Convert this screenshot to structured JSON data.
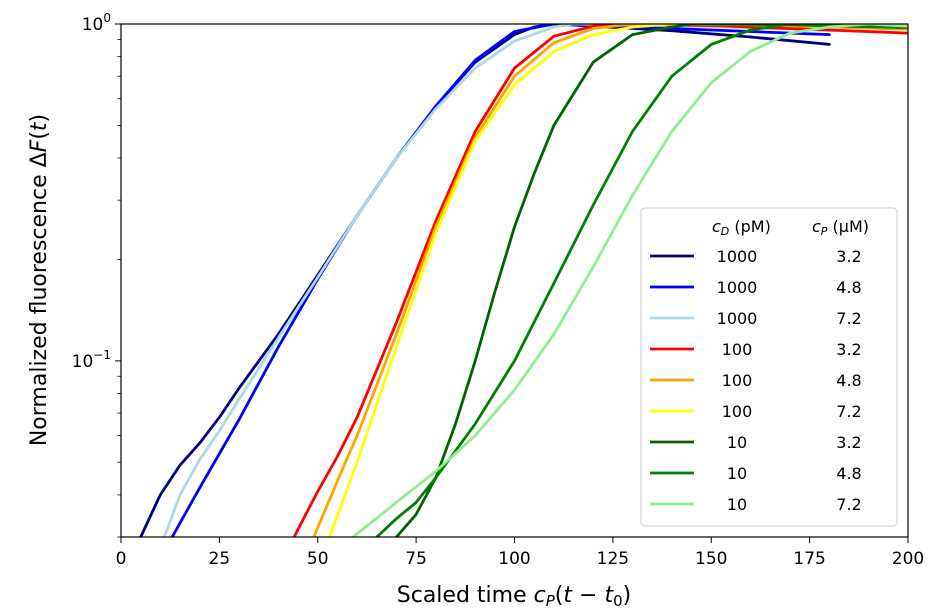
{
  "chart_data": {
    "type": "line",
    "xlabel": "Scaled time c_P(t − t_0)",
    "ylabel": "Normalized fluorescence ΔF(t)",
    "xlim": [
      0,
      200
    ],
    "ylim": [
      0.03,
      1.0
    ],
    "yscale": "log",
    "xticks": [
      "0",
      "25",
      "50",
      "75",
      "100",
      "125",
      "150",
      "175",
      "200"
    ],
    "yticks": [
      {
        "value": 1.0,
        "base": "10",
        "exp": "0"
      },
      {
        "value": 0.1,
        "base": "10",
        "exp": "−1"
      }
    ],
    "grid": false,
    "legend": {
      "placement": "lower-right",
      "header_cd": "c_D (pM)",
      "header_cp": "c_P (μM)"
    },
    "series": [
      {
        "cd": "1000",
        "cp": "3.2",
        "color": "#000080",
        "points": [
          [
            5,
            0.03
          ],
          [
            10,
            0.04
          ],
          [
            15,
            0.049
          ],
          [
            20,
            0.057
          ],
          [
            25,
            0.068
          ],
          [
            30,
            0.083
          ],
          [
            40,
            0.12
          ],
          [
            50,
            0.18
          ],
          [
            60,
            0.27
          ],
          [
            70,
            0.4
          ],
          [
            80,
            0.57
          ],
          [
            90,
            0.77
          ],
          [
            100,
            0.93
          ],
          [
            105,
            0.98
          ],
          [
            110,
            1.0
          ],
          [
            120,
            0.985
          ],
          [
            140,
            0.955
          ],
          [
            160,
            0.915
          ],
          [
            180,
            0.87
          ]
        ]
      },
      {
        "cd": "1000",
        "cp": "4.8",
        "color": "#0000ff",
        "points": [
          [
            13,
            0.03
          ],
          [
            20,
            0.042
          ],
          [
            30,
            0.067
          ],
          [
            40,
            0.11
          ],
          [
            50,
            0.175
          ],
          [
            60,
            0.27
          ],
          [
            70,
            0.4
          ],
          [
            80,
            0.57
          ],
          [
            90,
            0.78
          ],
          [
            100,
            0.95
          ],
          [
            110,
            1.0
          ],
          [
            130,
            0.98
          ],
          [
            150,
            0.96
          ],
          [
            180,
            0.93
          ]
        ]
      },
      {
        "cd": "1000",
        "cp": "7.2",
        "color": "#add8e6",
        "points": [
          [
            11,
            0.03
          ],
          [
            15,
            0.04
          ],
          [
            20,
            0.051
          ],
          [
            25,
            0.062
          ],
          [
            30,
            0.077
          ],
          [
            40,
            0.117
          ],
          [
            50,
            0.177
          ],
          [
            60,
            0.27
          ],
          [
            70,
            0.4
          ],
          [
            80,
            0.56
          ],
          [
            90,
            0.74
          ],
          [
            100,
            0.89
          ],
          [
            110,
            0.98
          ],
          [
            115,
            1.0
          ],
          [
            140,
            0.99
          ],
          [
            170,
            0.965
          ],
          [
            200,
            0.94
          ]
        ]
      },
      {
        "cd": "100",
        "cp": "3.2",
        "color": "#ff0000",
        "points": [
          [
            44,
            0.03
          ],
          [
            50,
            0.041
          ],
          [
            55,
            0.052
          ],
          [
            60,
            0.068
          ],
          [
            70,
            0.13
          ],
          [
            80,
            0.26
          ],
          [
            90,
            0.48
          ],
          [
            100,
            0.74
          ],
          [
            110,
            0.92
          ],
          [
            120,
            0.985
          ],
          [
            125,
            1.0
          ],
          [
            150,
            0.99
          ],
          [
            180,
            0.96
          ],
          [
            200,
            0.94
          ]
        ]
      },
      {
        "cd": "100",
        "cp": "4.8",
        "color": "#ffa500",
        "points": [
          [
            49,
            0.03
          ],
          [
            55,
            0.044
          ],
          [
            60,
            0.06
          ],
          [
            70,
            0.12
          ],
          [
            80,
            0.25
          ],
          [
            90,
            0.46
          ],
          [
            100,
            0.7
          ],
          [
            110,
            0.88
          ],
          [
            120,
            0.97
          ],
          [
            130,
            1.0
          ],
          [
            160,
            0.995
          ],
          [
            200,
            0.965
          ]
        ]
      },
      {
        "cd": "100",
        "cp": "7.2",
        "color": "#ffff00",
        "points": [
          [
            53,
            0.03
          ],
          [
            60,
            0.05
          ],
          [
            70,
            0.11
          ],
          [
            80,
            0.24
          ],
          [
            90,
            0.45
          ],
          [
            100,
            0.66
          ],
          [
            110,
            0.83
          ],
          [
            120,
            0.93
          ],
          [
            130,
            0.98
          ],
          [
            140,
            1.0
          ],
          [
            170,
            0.995
          ],
          [
            200,
            0.975
          ]
        ]
      },
      {
        "cd": "10",
        "cp": "3.2",
        "color": "#006400",
        "points": [
          [
            70,
            0.03
          ],
          [
            75,
            0.035
          ],
          [
            80,
            0.045
          ],
          [
            85,
            0.065
          ],
          [
            90,
            0.1
          ],
          [
            95,
            0.16
          ],
          [
            100,
            0.25
          ],
          [
            105,
            0.36
          ],
          [
            110,
            0.5
          ],
          [
            120,
            0.77
          ],
          [
            130,
            0.93
          ],
          [
            140,
            0.98
          ],
          [
            145,
            1.0
          ],
          [
            170,
            0.995
          ],
          [
            200,
            0.975
          ]
        ]
      },
      {
        "cd": "10",
        "cp": "4.8",
        "color": "#008000",
        "points": [
          [
            65,
            0.03
          ],
          [
            70,
            0.034
          ],
          [
            75,
            0.038
          ],
          [
            80,
            0.045
          ],
          [
            90,
            0.065
          ],
          [
            100,
            0.1
          ],
          [
            110,
            0.17
          ],
          [
            120,
            0.29
          ],
          [
            130,
            0.48
          ],
          [
            140,
            0.7
          ],
          [
            150,
            0.87
          ],
          [
            160,
            0.96
          ],
          [
            170,
            1.0
          ],
          [
            185,
            0.99
          ],
          [
            200,
            0.975
          ]
        ]
      },
      {
        "cd": "10",
        "cp": "7.2",
        "color": "#90ee90",
        "points": [
          [
            59,
            0.03
          ],
          [
            70,
            0.038
          ],
          [
            80,
            0.047
          ],
          [
            90,
            0.06
          ],
          [
            100,
            0.082
          ],
          [
            110,
            0.12
          ],
          [
            120,
            0.19
          ],
          [
            130,
            0.31
          ],
          [
            140,
            0.48
          ],
          [
            150,
            0.67
          ],
          [
            160,
            0.83
          ],
          [
            170,
            0.94
          ],
          [
            180,
            0.98
          ],
          [
            190,
            1.0
          ],
          [
            200,
            0.985
          ]
        ]
      }
    ]
  }
}
